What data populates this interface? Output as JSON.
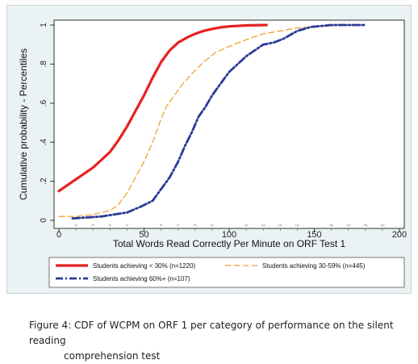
{
  "chart_data": {
    "type": "line",
    "title": "",
    "xlabel": "Total Words Read Correctly Per Minute on ORF Test 1",
    "ylabel": "Cumulative probability - Percentiles",
    "xlim": [
      0,
      200
    ],
    "ylim": [
      0,
      1
    ],
    "x_ticks": [
      "0",
      "50",
      "100",
      "150",
      "200"
    ],
    "x_minor_ticks": [
      "10",
      "20",
      "30",
      "40",
      "60",
      "70",
      "80",
      "90",
      "110",
      "120",
      "130",
      "140",
      "160",
      "170",
      "180",
      "190"
    ],
    "y_ticks": [
      "0",
      ".2",
      ".4",
      ".6",
      ".8",
      "1"
    ],
    "grid": false,
    "legend_position": "bottom",
    "series": [
      {
        "name": "Students achieving < 30% (n=1220)",
        "color": "#e8201f",
        "style": "solid",
        "points": [
          [
            0,
            0.15
          ],
          [
            5,
            0.18
          ],
          [
            10,
            0.21
          ],
          [
            15,
            0.24
          ],
          [
            20,
            0.27
          ],
          [
            25,
            0.31
          ],
          [
            30,
            0.35
          ],
          [
            35,
            0.41
          ],
          [
            40,
            0.48
          ],
          [
            45,
            0.56
          ],
          [
            50,
            0.64
          ],
          [
            55,
            0.73
          ],
          [
            60,
            0.81
          ],
          [
            65,
            0.87
          ],
          [
            70,
            0.91
          ],
          [
            75,
            0.935
          ],
          [
            80,
            0.955
          ],
          [
            85,
            0.97
          ],
          [
            90,
            0.98
          ],
          [
            95,
            0.988
          ],
          [
            100,
            0.993
          ],
          [
            110,
            0.998
          ],
          [
            122,
            1.0
          ]
        ]
      },
      {
        "name": "Students achieving 30-59% (n=445)",
        "color": "#f0a030",
        "style": "dash",
        "points": [
          [
            0,
            0.02
          ],
          [
            10,
            0.02
          ],
          [
            20,
            0.03
          ],
          [
            30,
            0.05
          ],
          [
            35,
            0.08
          ],
          [
            40,
            0.14
          ],
          [
            45,
            0.22
          ],
          [
            50,
            0.3
          ],
          [
            55,
            0.4
          ],
          [
            58,
            0.47
          ],
          [
            60,
            0.52
          ],
          [
            63,
            0.58
          ],
          [
            67,
            0.63
          ],
          [
            72,
            0.69
          ],
          [
            78,
            0.75
          ],
          [
            85,
            0.81
          ],
          [
            92,
            0.86
          ],
          [
            100,
            0.89
          ],
          [
            110,
            0.925
          ],
          [
            120,
            0.955
          ],
          [
            130,
            0.97
          ],
          [
            140,
            0.985
          ],
          [
            155,
            0.995
          ],
          [
            175,
            1.0
          ]
        ]
      },
      {
        "name": "Students achieving 60%+ (n=107)",
        "color": "#2a3a96",
        "style": "dashdot",
        "points": [
          [
            8,
            0.01
          ],
          [
            25,
            0.02
          ],
          [
            40,
            0.04
          ],
          [
            48,
            0.07
          ],
          [
            55,
            0.1
          ],
          [
            60,
            0.16
          ],
          [
            65,
            0.22
          ],
          [
            70,
            0.3
          ],
          [
            74,
            0.38
          ],
          [
            78,
            0.45
          ],
          [
            82,
            0.53
          ],
          [
            86,
            0.58
          ],
          [
            90,
            0.64
          ],
          [
            95,
            0.7
          ],
          [
            100,
            0.76
          ],
          [
            105,
            0.8
          ],
          [
            110,
            0.84
          ],
          [
            115,
            0.87
          ],
          [
            120,
            0.9
          ],
          [
            126,
            0.91
          ],
          [
            132,
            0.93
          ],
          [
            140,
            0.97
          ],
          [
            148,
            0.99
          ],
          [
            160,
            1.0
          ],
          [
            180,
            1.0
          ]
        ]
      }
    ]
  },
  "caption": {
    "line1": "Figure 4: CDF of WCPM on ORF 1 per category of performance on the silent reading",
    "line2": "comprehension test"
  }
}
